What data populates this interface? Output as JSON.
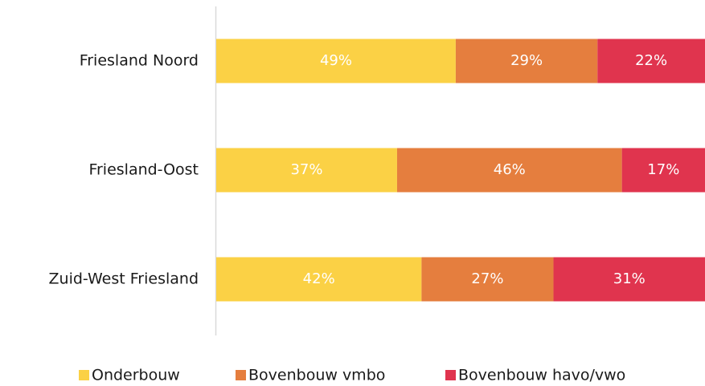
{
  "chart_data": {
    "type": "stacked_bar_horizontal",
    "categories": [
      "Friesland Noord",
      "Friesland-Oost",
      "Zuid-West Friesland"
    ],
    "series": [
      {
        "name": "Onderbouw",
        "color": "#fbd145",
        "values": [
          49,
          37,
          42
        ],
        "value_labels": [
          "49%",
          "37%",
          "42%"
        ]
      },
      {
        "name": "Bovenbouw vmbo",
        "color": "#e57e3e",
        "values": [
          29,
          46,
          27
        ],
        "value_labels": [
          "29%",
          "46%",
          "27%"
        ]
      },
      {
        "name": "Bovenbouw havo/vwo",
        "color": "#e0344e",
        "values": [
          22,
          17,
          31
        ],
        "value_labels": [
          "22%",
          "17%",
          "31%"
        ]
      }
    ],
    "xlim": [
      0,
      100
    ],
    "legend": "bottom"
  }
}
